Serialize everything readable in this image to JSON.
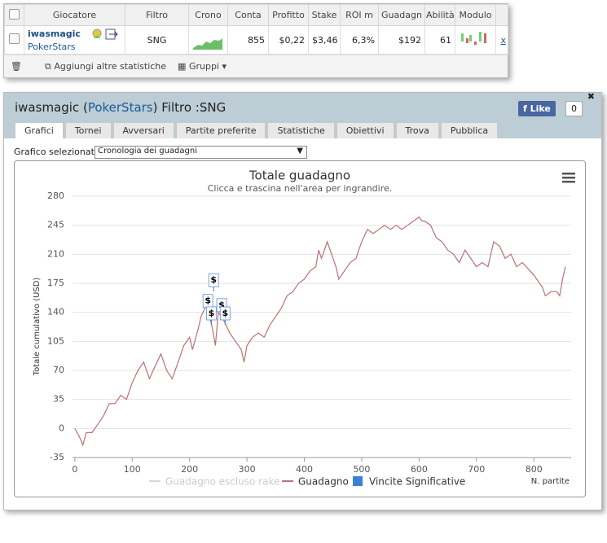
{
  "stats_table": {
    "headers": [
      "Giocatore",
      "Filtro",
      "Crono",
      "Conta",
      "Profitto",
      "Stake",
      "ROI m",
      "Guadagn",
      "Abilità",
      "Modulo"
    ],
    "row": {
      "player": "iwasmagic",
      "site": "PokerStars",
      "filter": "SNG",
      "count": "855",
      "profit": "$0,22",
      "stake": "$3,46",
      "roi": "6,3%",
      "winnings": "$192",
      "skill": "61",
      "remove": "x"
    },
    "footer": {
      "add": "Aggiungi altre statistiche",
      "groups": "Gruppi"
    }
  },
  "panel": {
    "title_prefix": "iwasmagic (",
    "title_site": "PokerStars",
    "title_suffix": ") Filtro :SNG",
    "like": "Like",
    "like_count": "0",
    "tabs": [
      "Grafici",
      "Tornei",
      "Avversari",
      "Partite preferite",
      "Statistiche",
      "Obiettivi",
      "Trova",
      "Pubblica"
    ],
    "selector_label": "Grafico selezionato",
    "selector_value": "Cronologia dei guadagni"
  },
  "chart_data": {
    "type": "line",
    "title": "Totale guadagno",
    "subtitle": "Clicca e trascina nell'area per ingrandire.",
    "y_label": "Totale cumulativo (USD)",
    "x_label": "N. partite",
    "xlim": [
      -4,
      865
    ],
    "ylim": [
      -35,
      280
    ],
    "xticks": [
      0,
      100,
      200,
      300,
      400,
      500,
      600,
      700,
      800
    ],
    "yticks": [
      -35,
      0,
      35,
      70,
      105,
      140,
      175,
      210,
      245,
      280
    ],
    "grid": true,
    "series": [
      {
        "name": "Guadagno escluso rake",
        "color": "#d6d6d6",
        "x": [],
        "values": []
      },
      {
        "name": "Guadagno",
        "color": "#bd7070",
        "x": [
          0,
          8,
          14,
          20,
          30,
          40,
          50,
          60,
          70,
          80,
          90,
          100,
          110,
          120,
          130,
          140,
          150,
          160,
          170,
          180,
          190,
          200,
          205,
          215,
          220,
          230,
          240,
          245,
          250,
          260,
          270,
          280,
          290,
          295,
          300,
          310,
          320,
          330,
          340,
          350,
          360,
          370,
          380,
          390,
          400,
          410,
          420,
          425,
          430,
          440,
          450,
          455,
          460,
          470,
          480,
          490,
          500,
          510,
          520,
          530,
          540,
          550,
          560,
          570,
          580,
          590,
          600,
          605,
          610,
          620,
          630,
          640,
          650,
          660,
          670,
          680,
          690,
          700,
          710,
          720,
          730,
          740,
          750,
          760,
          770,
          780,
          800,
          815,
          820,
          830,
          840,
          845,
          850,
          855
        ],
        "values": [
          0,
          -10,
          -20,
          -5,
          -5,
          5,
          15,
          30,
          30,
          40,
          35,
          55,
          70,
          80,
          60,
          75,
          90,
          70,
          60,
          80,
          100,
          110,
          95,
          120,
          135,
          150,
          120,
          100,
          140,
          130,
          115,
          105,
          95,
          80,
          100,
          110,
          115,
          110,
          125,
          135,
          145,
          160,
          165,
          175,
          180,
          190,
          195,
          215,
          205,
          225,
          205,
          195,
          180,
          190,
          200,
          205,
          225,
          240,
          235,
          240,
          245,
          240,
          245,
          240,
          245,
          250,
          255,
          250,
          250,
          245,
          230,
          225,
          215,
          210,
          200,
          215,
          205,
          195,
          200,
          195,
          225,
          220,
          205,
          210,
          195,
          200,
          185,
          170,
          160,
          165,
          165,
          160,
          180,
          195
        ]
      },
      {
        "name": "Vincite Significative",
        "color": "#3d7fd6",
        "flag_label": "$",
        "x": [
          242,
          232,
          238,
          256,
          262
        ],
        "values": [
          165,
          140,
          125,
          135,
          125
        ]
      }
    ]
  }
}
